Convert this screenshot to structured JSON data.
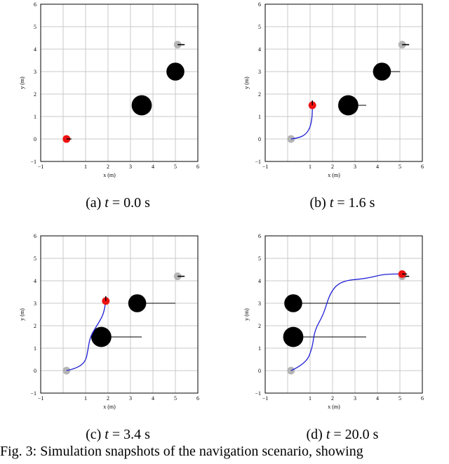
{
  "figure_caption": "Fig. 3: Simulation snapshots of the navigation scenario, showing",
  "chart_data": [
    {
      "type": "scatter",
      "caption_label": "(a)",
      "caption_var": "t",
      "caption_value": "= 0.0 s",
      "xlabel": "x (m)",
      "ylabel": "y (m)",
      "xlim": [
        -1,
        6
      ],
      "ylim": [
        -1,
        6
      ],
      "xticks": [
        "−1",
        "1",
        "2",
        "3",
        "4",
        "5",
        "6"
      ],
      "yticks": [
        "−1",
        "0",
        "1",
        "2",
        "3",
        "4",
        "5",
        "6"
      ],
      "grid": true,
      "obstacles": [
        {
          "x": 3.5,
          "y": 1.5,
          "r": 0.45,
          "line_to_x": 3.5
        },
        {
          "x": 5.0,
          "y": 3.0,
          "r": 0.4,
          "line_to_x": 5.0
        }
      ],
      "goal": {
        "x": 5.1,
        "y": 4.2,
        "r": 0.17,
        "heading": 0
      },
      "robot": {
        "x": 0.15,
        "y": 0.0,
        "r": 0.17,
        "heading": 0
      },
      "start": null,
      "trajectory": []
    },
    {
      "type": "scatter",
      "caption_label": "(b)",
      "caption_var": "t",
      "caption_value": "= 1.6 s",
      "xlabel": "x (m)",
      "ylabel": "y (m)",
      "xlim": [
        -1,
        6
      ],
      "ylim": [
        -1,
        6
      ],
      "xticks": [
        "−1",
        "1",
        "2",
        "3",
        "4",
        "5",
        "6"
      ],
      "yticks": [
        "−1",
        "0",
        "1",
        "2",
        "3",
        "4",
        "5",
        "6"
      ],
      "grid": true,
      "obstacles": [
        {
          "x": 2.7,
          "y": 1.5,
          "r": 0.45,
          "line_to_x": 3.5
        },
        {
          "x": 4.2,
          "y": 3.0,
          "r": 0.4,
          "line_to_x": 5.0
        }
      ],
      "goal": {
        "x": 5.1,
        "y": 4.2,
        "r": 0.17,
        "heading": 0
      },
      "robot": {
        "x": 1.1,
        "y": 1.5,
        "r": 0.17,
        "heading": 90
      },
      "start": {
        "x": 0.15,
        "y": 0.0,
        "r": 0.17
      },
      "trajectory": [
        [
          0.15,
          0.0
        ],
        [
          0.5,
          0.05
        ],
        [
          0.8,
          0.2
        ],
        [
          1.0,
          0.5
        ],
        [
          1.08,
          0.9
        ],
        [
          1.1,
          1.2
        ],
        [
          1.1,
          1.5
        ]
      ]
    },
    {
      "type": "scatter",
      "caption_label": "(c)",
      "caption_var": "t",
      "caption_value": "= 3.4 s",
      "xlabel": "x (m)",
      "ylabel": "y (m)",
      "xlim": [
        -1,
        6
      ],
      "ylim": [
        -1,
        6
      ],
      "xticks": [
        "−1",
        "1",
        "2",
        "3",
        "4",
        "5",
        "6"
      ],
      "yticks": [
        "−1",
        "0",
        "1",
        "2",
        "3",
        "4",
        "5",
        "6"
      ],
      "grid": true,
      "obstacles": [
        {
          "x": 1.7,
          "y": 1.5,
          "r": 0.45,
          "line_to_x": 3.5
        },
        {
          "x": 3.3,
          "y": 3.0,
          "r": 0.4,
          "line_to_x": 5.0
        }
      ],
      "goal": {
        "x": 5.1,
        "y": 4.2,
        "r": 0.17,
        "heading": 0
      },
      "robot": {
        "x": 1.9,
        "y": 3.1,
        "r": 0.17,
        "heading": 90
      },
      "start": {
        "x": 0.15,
        "y": 0.0,
        "r": 0.17
      },
      "trajectory": [
        [
          0.15,
          0.0
        ],
        [
          0.6,
          0.1
        ],
        [
          1.0,
          0.4
        ],
        [
          1.1,
          0.9
        ],
        [
          1.2,
          1.5
        ],
        [
          1.5,
          2.0
        ],
        [
          1.8,
          2.5
        ],
        [
          1.9,
          3.1
        ]
      ]
    },
    {
      "type": "scatter",
      "caption_label": "(d)",
      "caption_var": "t",
      "caption_value": "= 20.0 s",
      "xlabel": "x (m)",
      "ylabel": "y (m)",
      "xlim": [
        -1,
        6
      ],
      "ylim": [
        -1,
        6
      ],
      "xticks": [
        "−1",
        "1",
        "2",
        "3",
        "4",
        "5",
        "6"
      ],
      "yticks": [
        "−1",
        "0",
        "1",
        "2",
        "3",
        "4",
        "5",
        "6"
      ],
      "grid": true,
      "obstacles": [
        {
          "x": 0.25,
          "y": 1.5,
          "r": 0.45,
          "line_to_x": 3.5
        },
        {
          "x": 0.25,
          "y": 3.0,
          "r": 0.4,
          "line_to_x": 5.0
        }
      ],
      "goal": {
        "x": 5.1,
        "y": 4.2,
        "r": 0.17,
        "heading": 0
      },
      "robot": {
        "x": 5.1,
        "y": 4.3,
        "r": 0.17,
        "heading": 0
      },
      "start": {
        "x": 0.15,
        "y": 0.0,
        "r": 0.17
      },
      "trajectory": [
        [
          0.15,
          0.0
        ],
        [
          0.8,
          0.3
        ],
        [
          1.1,
          1.0
        ],
        [
          1.2,
          1.8
        ],
        [
          1.6,
          2.5
        ],
        [
          1.9,
          3.5
        ],
        [
          2.4,
          4.0
        ],
        [
          3.5,
          4.1
        ],
        [
          4.3,
          4.3
        ],
        [
          5.1,
          4.3
        ]
      ]
    }
  ]
}
